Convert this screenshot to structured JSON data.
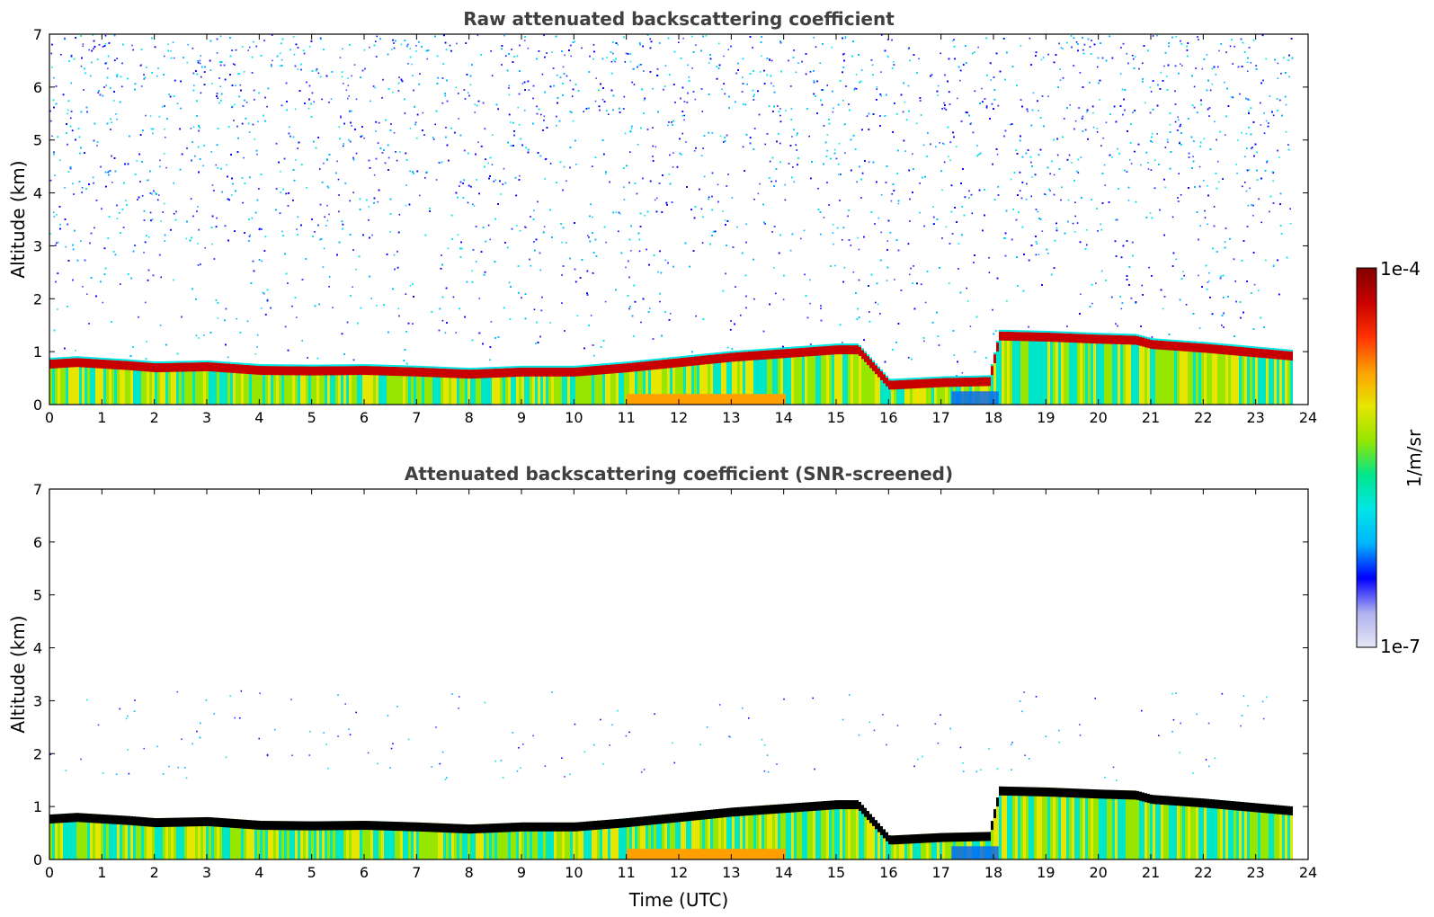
{
  "chart_data": [
    {
      "type": "heatmap",
      "title": "Raw attenuated backscattering coefficient",
      "xlabel": "",
      "ylabel": "Altitude (km)",
      "xlim": [
        0,
        24
      ],
      "ylim": [
        0,
        7
      ],
      "x_ticks": [
        "0",
        "1",
        "2",
        "3",
        "4",
        "5",
        "6",
        "7",
        "8",
        "9",
        "10",
        "11",
        "12",
        "13",
        "14",
        "15",
        "16",
        "17",
        "18",
        "19",
        "20",
        "21",
        "22",
        "23",
        "24"
      ],
      "y_ticks": [
        "0",
        "1",
        "2",
        "3",
        "4",
        "5",
        "6",
        "7"
      ],
      "data_end_time": 23.7,
      "boundary_layer_top_km": [
        [
          0,
          0.85
        ],
        [
          0.5,
          0.88
        ],
        [
          1,
          0.85
        ],
        [
          1.5,
          0.82
        ],
        [
          2,
          0.78
        ],
        [
          3,
          0.8
        ],
        [
          4,
          0.73
        ],
        [
          5,
          0.72
        ],
        [
          6,
          0.73
        ],
        [
          7,
          0.7
        ],
        [
          8,
          0.66
        ],
        [
          9,
          0.7
        ],
        [
          10,
          0.7
        ],
        [
          11,
          0.78
        ],
        [
          12,
          0.88
        ],
        [
          13,
          0.98
        ],
        [
          14,
          1.05
        ],
        [
          15,
          1.12
        ],
        [
          15.4,
          1.12
        ],
        [
          16,
          0.45
        ],
        [
          17,
          0.5
        ],
        [
          17.9,
          0.52
        ],
        [
          18.1,
          1.38
        ],
        [
          19,
          1.36
        ],
        [
          20,
          1.32
        ],
        [
          20.7,
          1.3
        ],
        [
          21,
          1.22
        ],
        [
          22,
          1.15
        ],
        [
          23.7,
          1.0
        ]
      ],
      "noise_level": "high"
    },
    {
      "type": "heatmap",
      "title": "Attenuated backscattering coefficient (SNR-screened)",
      "xlabel": "Time (UTC)",
      "ylabel": "Altitude (km)",
      "xlim": [
        0,
        24
      ],
      "ylim": [
        0,
        7
      ],
      "x_ticks": [
        "0",
        "1",
        "2",
        "3",
        "4",
        "5",
        "6",
        "7",
        "8",
        "9",
        "10",
        "11",
        "12",
        "13",
        "14",
        "15",
        "16",
        "17",
        "18",
        "19",
        "20",
        "21",
        "22",
        "23",
        "24"
      ],
      "y_ticks": [
        "0",
        "1",
        "2",
        "3",
        "4",
        "5",
        "6",
        "7"
      ],
      "data_end_time": 23.7,
      "saturated_color": "#000000",
      "noise_level": "low"
    }
  ],
  "colorbar": {
    "label": "1/m/sr",
    "max_label": "1e-4",
    "min_label": "1e-7",
    "scale": "log",
    "colormap": [
      "#e6e6f5",
      "#b0b0f0",
      "#0000ff",
      "#00b4ff",
      "#00e6e6",
      "#00e68c",
      "#96e600",
      "#e6e600",
      "#ffa000",
      "#ff3200",
      "#c80000",
      "#800000"
    ]
  }
}
